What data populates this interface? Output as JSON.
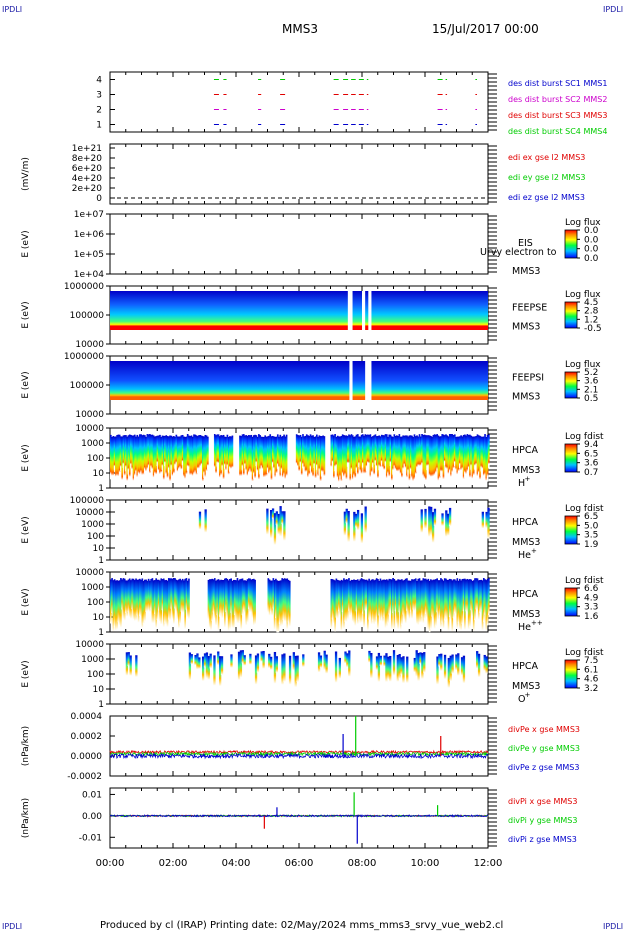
{
  "corner_labels": {
    "top_left": "IPDLI",
    "top_right": "IPDLI",
    "bottom_left": "IPDLI",
    "bottom_right": "IPDLI"
  },
  "header": {
    "spacecraft": "MMS3",
    "date": "15/Jul/2017 00:00"
  },
  "footer": {
    "text": "Produced by cl (IRAP)   Printing date: 02/May/2024   mms_mms3_srvy_vue_web2.cl"
  },
  "colors": {
    "red": "#e00000",
    "green": "#00cc00",
    "blue": "#0000cc",
    "magenta": "#cc00cc",
    "label_blue": "#0000aa"
  },
  "chart_data": [
    {
      "type": "line",
      "panel": "burst",
      "ylim": [
        0.5,
        4.5
      ],
      "ytick_labels": [
        "1",
        "2",
        "3",
        "4"
      ],
      "legend": [
        {
          "text": "des dist burst SC1 MMS1",
          "color": "#0000cc"
        },
        {
          "text": "des dist burst SC2 MMS2",
          "color": "#cc00cc"
        },
        {
          "text": "des dist burst SC3 MMS3",
          "color": "#e00000"
        },
        {
          "text": "des dist burst SC4 MMS4",
          "color": "#00cc00"
        }
      ],
      "intervals_hours": [
        [
          3.3,
          3.5
        ],
        [
          3.6,
          3.7
        ],
        [
          4.7,
          4.8
        ],
        [
          5.4,
          5.6
        ],
        [
          7.1,
          7.3
        ],
        [
          7.4,
          7.8
        ],
        [
          7.9,
          8.2
        ],
        [
          10.4,
          10.7
        ],
        [
          11.6,
          11.65
        ]
      ]
    },
    {
      "type": "line",
      "panel": "edi",
      "ylabel": "(mV/m)",
      "ylim": [
        0,
        1.1e+21
      ],
      "ytick_labels": [
        "1e+21",
        "8e+20",
        "6e+20",
        "4e+20",
        "2e+20",
        "0"
      ],
      "series": [
        {
          "name": "edi ex gse l2 MMS3",
          "color": "#e00000",
          "value": 0
        },
        {
          "name": "edi ey gse l2 MMS3",
          "color": "#00cc00",
          "value": 0
        },
        {
          "name": "edi ez gse l2 MMS3",
          "color": "#0000cc",
          "value": 0
        }
      ]
    },
    {
      "type": "heatmap",
      "panel": "eis",
      "ylabel": "E (eV)",
      "yscale": "log",
      "ytick_labels": [
        "1e+07",
        "1e+06",
        "1e+05",
        "1e+04"
      ],
      "side_labels": [
        "EIS",
        "MMS3"
      ],
      "overlay_text": "Urvy electron to",
      "colorbar": {
        "title": "Log flux",
        "ticks": [
          "0.0",
          "0.0",
          "0.0",
          "0.0"
        ]
      },
      "coverage_hours": []
    },
    {
      "type": "heatmap",
      "panel": "feepse",
      "ylabel": "E (eV)",
      "yscale": "log",
      "ylim": [
        10000,
        1000000
      ],
      "ytick_labels": [
        "1000000",
        "100000",
        "10000"
      ],
      "side_labels": [
        "FEEPSE",
        "MMS3"
      ],
      "colorbar": {
        "title": "Log flux",
        "ticks": [
          "4.5",
          "2.8",
          "1.2",
          "-0.5"
        ]
      },
      "coverage_hours": [
        [
          0,
          12
        ]
      ],
      "gaps_hours": [
        [
          7.55,
          7.7
        ],
        [
          8.0,
          8.1
        ],
        [
          8.2,
          8.3
        ]
      ]
    },
    {
      "type": "heatmap",
      "panel": "feepsi",
      "ylabel": "E (eV)",
      "yscale": "log",
      "ylim": [
        10000,
        1000000
      ],
      "ytick_labels": [
        "1000000",
        "100000",
        "10000"
      ],
      "side_labels": [
        "FEEPSI",
        "MMS3"
      ],
      "colorbar": {
        "title": "Log flux",
        "ticks": [
          "5.2",
          "3.6",
          "2.1",
          "0.5"
        ]
      },
      "coverage_hours": [
        [
          0,
          12
        ]
      ],
      "gaps_hours": [
        [
          7.6,
          7.7
        ],
        [
          8.1,
          8.3
        ]
      ]
    },
    {
      "type": "heatmap",
      "panel": "hpca_h",
      "ylabel": "E (eV)",
      "yscale": "log",
      "ylim": [
        1,
        10000
      ],
      "ytick_labels": [
        "10000",
        "1000",
        "100",
        "10",
        "1"
      ],
      "side_labels": [
        "HPCA",
        "MMS3"
      ],
      "species": "H",
      "species_charge": "+",
      "colorbar": {
        "title": "Log fdist",
        "ticks": [
          "9.4",
          "6.5",
          "3.6",
          "0.7"
        ]
      },
      "coverage_hours": [
        [
          0,
          3.1
        ],
        [
          3.3,
          3.9
        ],
        [
          4.1,
          5.6
        ],
        [
          5.9,
          6.8
        ],
        [
          7.0,
          12
        ]
      ]
    },
    {
      "type": "heatmap",
      "panel": "hpca_he",
      "ylabel": "E (eV)",
      "yscale": "log",
      "ylim": [
        1,
        100000
      ],
      "ytick_labels": [
        "100000",
        "10000",
        "1000",
        "100",
        "10",
        "1"
      ],
      "side_labels": [
        "HPCA",
        "MMS3"
      ],
      "species": "He",
      "species_charge": "+",
      "colorbar": {
        "title": "Log fdist",
        "ticks": [
          "6.5",
          "5.0",
          "3.5",
          "1.9"
        ]
      },
      "coverage_hours": [
        [
          2.7,
          3.2
        ],
        [
          4.9,
          5.5
        ],
        [
          7.3,
          8.1
        ],
        [
          9.8,
          11.0
        ],
        [
          11.8,
          12
        ]
      ]
    },
    {
      "type": "heatmap",
      "panel": "hpca_hepp",
      "ylabel": "E (eV)",
      "yscale": "log",
      "ylim": [
        1,
        10000
      ],
      "ytick_labels": [
        "10000",
        "1000",
        "100",
        "10",
        "1"
      ],
      "side_labels": [
        "HPCA",
        "MMS3"
      ],
      "species": "He",
      "species_charge": "++",
      "colorbar": {
        "title": "Log fdist",
        "ticks": [
          "6.6",
          "4.9",
          "3.3",
          "1.6"
        ]
      },
      "coverage_hours": [
        [
          0,
          2.5
        ],
        [
          3.1,
          4.6
        ],
        [
          5.0,
          5.7
        ],
        [
          7.0,
          12
        ]
      ]
    },
    {
      "type": "heatmap",
      "panel": "hpca_o",
      "ylabel": "E (eV)",
      "yscale": "log",
      "ylim": [
        1,
        10000
      ],
      "ytick_labels": [
        "10000",
        "1000",
        "100",
        "10",
        "1"
      ],
      "side_labels": [
        "HPCA",
        "MMS3"
      ],
      "species": "O",
      "species_charge": "+",
      "colorbar": {
        "title": "Log fdist",
        "ticks": [
          "7.5",
          "6.1",
          "4.6",
          "3.2"
        ]
      },
      "coverage_hours": [
        [
          0.5,
          0.9
        ],
        [
          2.5,
          6.2
        ],
        [
          6.6,
          7.6
        ],
        [
          8.2,
          12
        ]
      ]
    },
    {
      "type": "line",
      "panel": "divpe",
      "ylabel": "(nPa/km)",
      "ylim": [
        -0.0002,
        0.0004
      ],
      "ytick_labels": [
        "0.0004",
        "0.0002",
        "0.0000",
        "-0.0002"
      ],
      "series": [
        {
          "name": "divPe x gse MMS3",
          "color": "#e00000",
          "baseline": 4e-05,
          "noise": 1.2e-05
        },
        {
          "name": "divPe y gse MMS3",
          "color": "#00cc00",
          "baseline": 2e-05,
          "noise": 1.5e-05
        },
        {
          "name": "divPe z gse MMS3",
          "color": "#0000cc",
          "baseline": 0.0,
          "noise": 2e-05
        }
      ],
      "spikes": [
        [
          7.8,
          0.0004
        ],
        [
          7.4,
          0.00022
        ],
        [
          10.5,
          0.0002
        ]
      ]
    },
    {
      "type": "line",
      "panel": "divpi",
      "ylabel": "(nPa/km)",
      "ylim": [
        -0.015,
        0.013
      ],
      "ytick_labels": [
        "0.01",
        "0.00",
        "-0.01"
      ],
      "series": [
        {
          "name": "divPi x gse MMS3",
          "color": "#e00000",
          "baseline": 0.0,
          "noise": 0.0003
        },
        {
          "name": "divPi y gse MMS3",
          "color": "#00cc00",
          "baseline": 0.0,
          "noise": 0.0003
        },
        {
          "name": "divPi z gse MMS3",
          "color": "#0000cc",
          "baseline": 0.0,
          "noise": 0.0004
        }
      ],
      "spikes": [
        [
          7.75,
          0.011
        ],
        [
          7.85,
          -0.013
        ],
        [
          4.9,
          -0.006
        ],
        [
          10.4,
          0.005
        ],
        [
          5.3,
          0.004
        ]
      ]
    }
  ],
  "x_axis": {
    "range_hours": [
      0,
      12
    ],
    "tick_labels": [
      "00:00",
      "02:00",
      "04:00",
      "06:00",
      "08:00",
      "10:00",
      "12:00"
    ]
  }
}
